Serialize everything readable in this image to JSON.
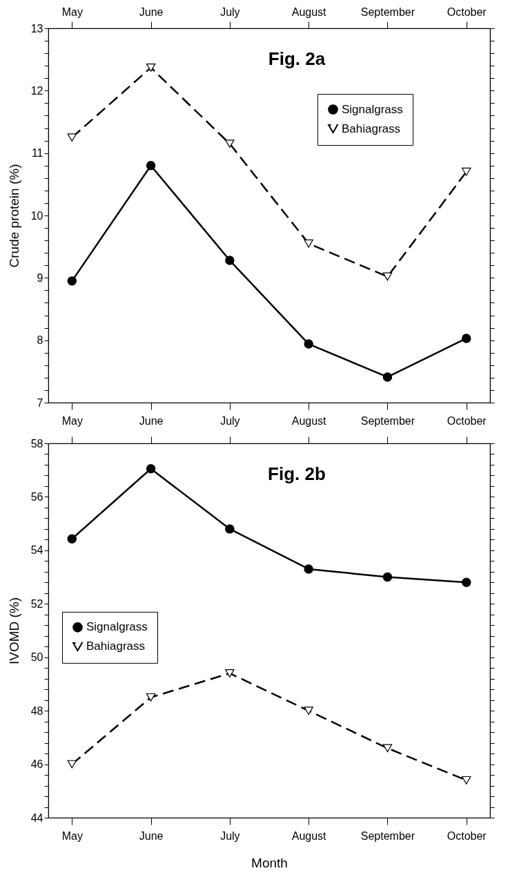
{
  "chart_data": [
    {
      "type": "line",
      "title": "Fig. 2a",
      "ylabel": "Crude protein (%)",
      "categories": [
        "May",
        "June",
        "July",
        "August",
        "September",
        "October"
      ],
      "series": [
        {
          "name": "Signalgrass",
          "color": "#000000",
          "marker": "circle",
          "line_style": "solid",
          "values": [
            8.95,
            10.8,
            9.28,
            7.94,
            7.41,
            8.03
          ]
        },
        {
          "name": "Bahiagrass",
          "color": "#000000",
          "marker": "triangle",
          "line_style": "dashed",
          "values": [
            11.25,
            12.37,
            11.15,
            9.55,
            9.02,
            10.7
          ]
        }
      ],
      "ylim": [
        7,
        13
      ],
      "yticks": [
        7,
        {
          "value": 7.2,
          "label": null
        },
        {
          "value": 7.4,
          "label": null
        },
        {
          "value": 7.6,
          "label": null
        },
        {
          "value": 7.8,
          "label": null
        },
        8,
        {
          "value": 8.2,
          "label": null
        },
        {
          "value": 8.4,
          "label": null
        },
        {
          "value": 8.6,
          "label": null
        },
        {
          "value": 8.8,
          "label": null
        },
        9,
        {
          "value": 9.2,
          "label": null
        },
        {
          "value": 9.4,
          "label": null
        },
        {
          "value": 9.6,
          "label": null
        },
        {
          "value": 9.8,
          "label": null
        },
        10,
        {
          "value": 10.2,
          "label": null
        },
        {
          "value": 10.4,
          "label": null
        },
        {
          "value": 10.6,
          "label": null
        },
        {
          "value": 10.8,
          "label": null
        },
        11,
        {
          "value": 11.2,
          "label": null
        },
        {
          "value": 11.4,
          "label": null
        },
        {
          "value": 11.6,
          "label": null
        },
        {
          "value": 11.8,
          "label": null
        },
        12,
        {
          "value": 12.2,
          "label": null
        },
        {
          "value": 12.4,
          "label": null
        },
        {
          "value": 12.6,
          "label": null
        },
        {
          "value": 12.8,
          "label": null
        },
        13
      ],
      "grid": false,
      "legend": "top right"
    },
    {
      "type": "line",
      "title": "Fig. 2b",
      "xlabel": "Month",
      "ylabel": "IVOMD (%)",
      "categories": [
        "May",
        "June",
        "July",
        "August",
        "September",
        "October"
      ],
      "series": [
        {
          "name": "Signalgrass",
          "color": "#000000",
          "marker": "circle",
          "line_style": "solid",
          "values": [
            54.43,
            57.05,
            54.8,
            53.3,
            53.0,
            52.8
          ]
        },
        {
          "name": "Bahiagrass",
          "color": "#000000",
          "marker": "triangle",
          "line_style": "dashed",
          "values": [
            46.0,
            48.5,
            49.4,
            48.0,
            46.6,
            45.4
          ]
        }
      ],
      "ylim": [
        44,
        58
      ],
      "yticks": [
        44,
        {
          "value": 44.4,
          "label": null
        },
        {
          "value": 44.8,
          "label": null
        },
        {
          "value": 45.2,
          "label": null
        },
        {
          "value": 45.6,
          "label": null
        },
        46,
        {
          "value": 46.4,
          "label": null
        },
        {
          "value": 46.8,
          "label": null
        },
        {
          "value": 47.2,
          "label": null
        },
        {
          "value": 47.6,
          "label": null
        },
        48,
        {
          "value": 48.4,
          "label": null
        },
        {
          "value": 48.8,
          "label": null
        },
        {
          "value": 49.2,
          "label": null
        },
        {
          "value": 49.6,
          "label": null
        },
        50,
        {
          "value": 50.4,
          "label": null
        },
        {
          "value": 50.8,
          "label": null
        },
        {
          "value": 51.2,
          "label": null
        },
        {
          "value": 51.6,
          "label": null
        },
        52,
        {
          "value": 52.4,
          "label": null
        },
        {
          "value": 52.8,
          "label": null
        },
        {
          "value": 53.2,
          "label": null
        },
        {
          "value": 53.6,
          "label": null
        },
        54,
        {
          "value": 54.4,
          "label": null
        },
        {
          "value": 54.8,
          "label": null
        },
        {
          "value": 55.2,
          "label": null
        },
        {
          "value": 55.6,
          "label": null
        },
        56,
        {
          "value": 56.4,
          "label": null
        },
        {
          "value": 56.8,
          "label": null
        },
        {
          "value": 57.2,
          "label": null
        },
        {
          "value": 57.6,
          "label": null
        },
        58
      ],
      "grid": false,
      "legend": "left"
    }
  ]
}
